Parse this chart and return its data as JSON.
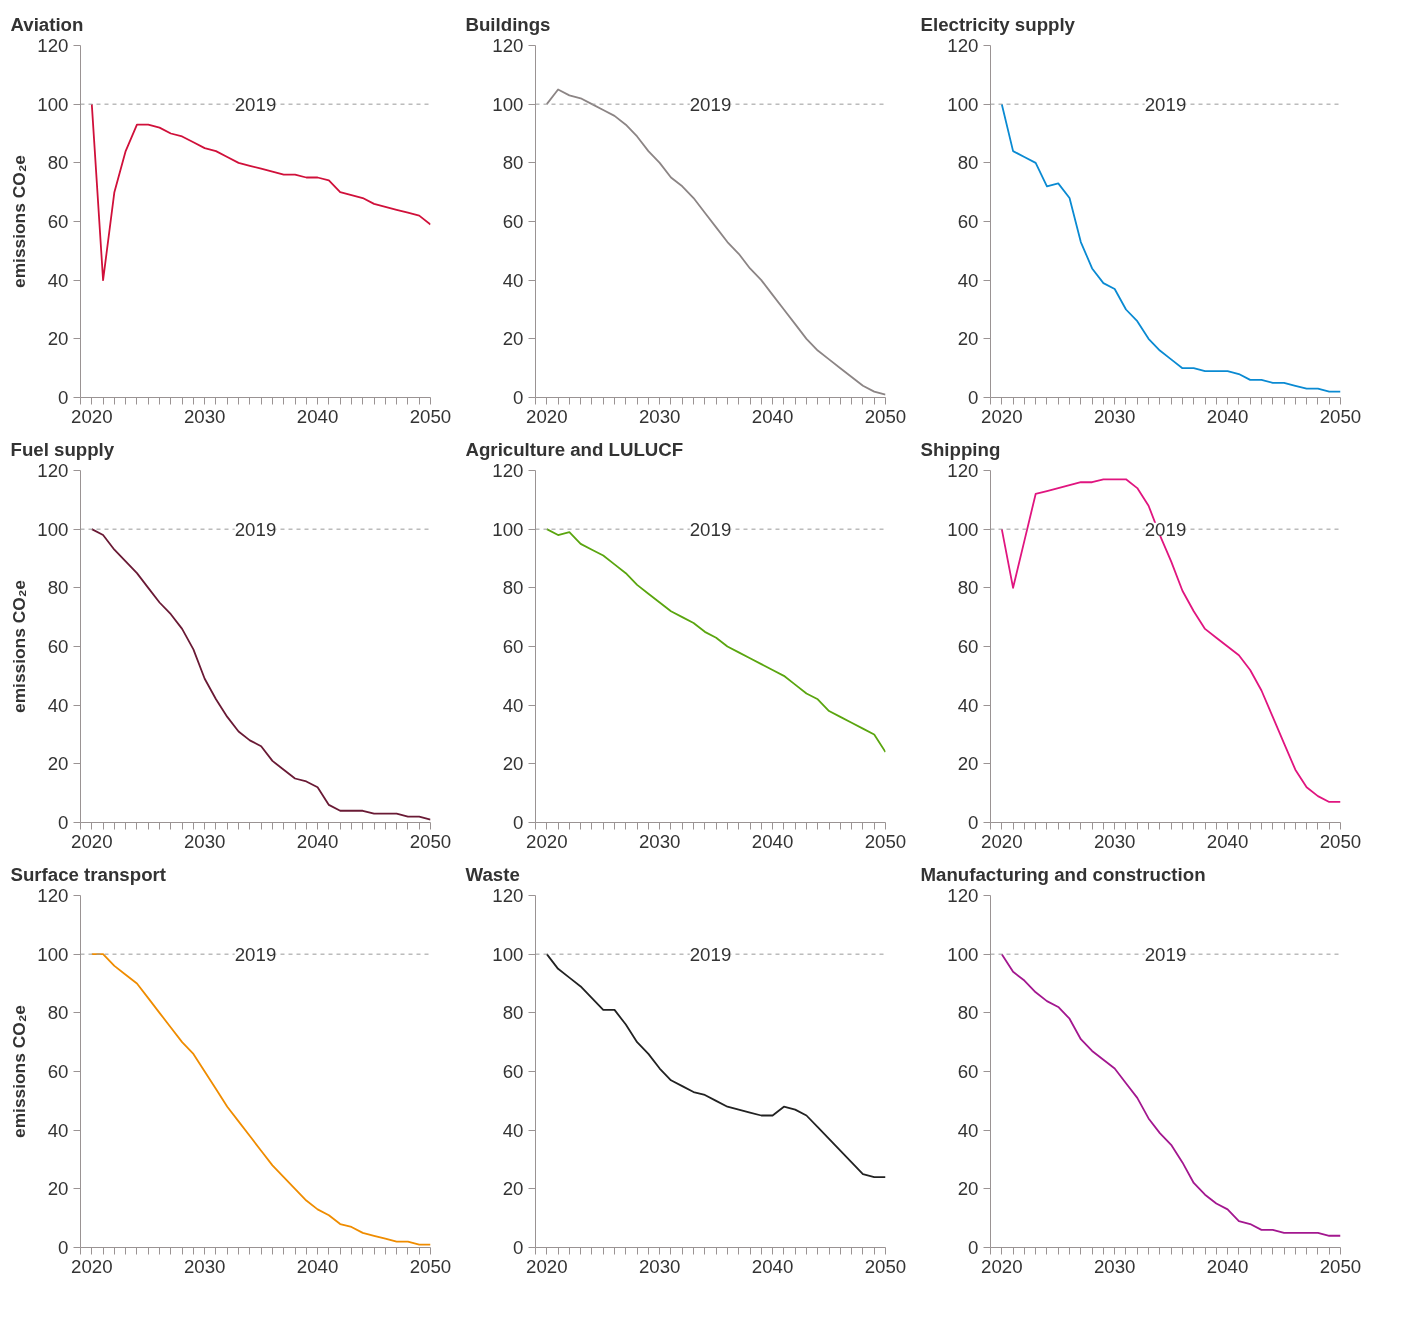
{
  "chart_data": [
    {
      "type": "line",
      "title": "Aviation",
      "ylabel": "emissions CO₂e",
      "annotations": [
        "2019"
      ],
      "x": [
        2020,
        2021,
        2022,
        2023,
        2024,
        2025,
        2026,
        2027,
        2028,
        2029,
        2030,
        2031,
        2032,
        2033,
        2034,
        2035,
        2036,
        2037,
        2038,
        2039,
        2040,
        2041,
        2042,
        2043,
        2044,
        2045,
        2046,
        2047,
        2048,
        2049,
        2050
      ],
      "series": [
        {
          "color": "#d0103a",
          "values": [
            100,
            40,
            70,
            84,
            93,
            93,
            92,
            90,
            89,
            87,
            85,
            84,
            82,
            80,
            79,
            78,
            77,
            76,
            76,
            75,
            75,
            74,
            70,
            69,
            68,
            66,
            65,
            64,
            63,
            62,
            59
          ]
        }
      ],
      "xlim": [
        2019,
        2050
      ],
      "xticks": [
        {
          "value": 2019,
          "label": null
        },
        2020,
        {
          "value": 2021,
          "label": null
        },
        {
          "value": 2022,
          "label": null
        },
        {
          "value": 2023,
          "label": null
        },
        {
          "value": 2024,
          "label": null
        },
        {
          "value": 2025,
          "label": null
        },
        {
          "value": 2026,
          "label": null
        },
        {
          "value": 2027,
          "label": null
        },
        {
          "value": 2028,
          "label": null
        },
        {
          "value": 2029,
          "label": null
        },
        2030,
        {
          "value": 2031,
          "label": null
        },
        {
          "value": 2032,
          "label": null
        },
        {
          "value": 2033,
          "label": null
        },
        {
          "value": 2034,
          "label": null
        },
        {
          "value": 2035,
          "label": null
        },
        {
          "value": 2036,
          "label": null
        },
        {
          "value": 2037,
          "label": null
        },
        {
          "value": 2038,
          "label": null
        },
        {
          "value": 2039,
          "label": null
        },
        2040,
        {
          "value": 2041,
          "label": null
        },
        {
          "value": 2042,
          "label": null
        },
        {
          "value": 2043,
          "label": null
        },
        {
          "value": 2044,
          "label": null
        },
        {
          "value": 2045,
          "label": null
        },
        {
          "value": 2046,
          "label": null
        },
        {
          "value": 2047,
          "label": null
        },
        {
          "value": 2048,
          "label": null
        },
        {
          "value": 2049,
          "label": null
        },
        2050
      ],
      "ylim": [
        0,
        120
      ],
      "yticks": [
        0,
        20,
        40,
        60,
        80,
        100,
        120
      ],
      "ref_lines": [
        {
          "axis": "y",
          "value": 100,
          "color": "#999999",
          "line_style": "dashed"
        }
      ]
    },
    {
      "type": "line",
      "title": "Buildings",
      "annotations": [
        "2019"
      ],
      "x": [
        2020,
        2021,
        2022,
        2023,
        2024,
        2025,
        2026,
        2027,
        2028,
        2029,
        2030,
        2031,
        2032,
        2033,
        2034,
        2035,
        2036,
        2037,
        2038,
        2039,
        2040,
        2041,
        2042,
        2043,
        2044,
        2045,
        2046,
        2047,
        2048,
        2049,
        2050
      ],
      "series": [
        {
          "color": "#8c8585",
          "values": [
            100,
            105,
            103,
            102,
            100,
            98,
            96,
            93,
            89,
            84,
            80,
            75,
            72,
            68,
            63,
            58,
            53,
            49,
            44,
            40,
            35,
            30,
            25,
            20,
            16,
            13,
            10,
            7,
            4,
            2,
            1
          ]
        }
      ],
      "xlim": [
        2019,
        2050
      ],
      "xticks": [
        {
          "value": 2019,
          "label": null
        },
        2020,
        {
          "value": 2021,
          "label": null
        },
        {
          "value": 2022,
          "label": null
        },
        {
          "value": 2023,
          "label": null
        },
        {
          "value": 2024,
          "label": null
        },
        {
          "value": 2025,
          "label": null
        },
        {
          "value": 2026,
          "label": null
        },
        {
          "value": 2027,
          "label": null
        },
        {
          "value": 2028,
          "label": null
        },
        {
          "value": 2029,
          "label": null
        },
        2030,
        {
          "value": 2031,
          "label": null
        },
        {
          "value": 2032,
          "label": null
        },
        {
          "value": 2033,
          "label": null
        },
        {
          "value": 2034,
          "label": null
        },
        {
          "value": 2035,
          "label": null
        },
        {
          "value": 2036,
          "label": null
        },
        {
          "value": 2037,
          "label": null
        },
        {
          "value": 2038,
          "label": null
        },
        {
          "value": 2039,
          "label": null
        },
        2040,
        {
          "value": 2041,
          "label": null
        },
        {
          "value": 2042,
          "label": null
        },
        {
          "value": 2043,
          "label": null
        },
        {
          "value": 2044,
          "label": null
        },
        {
          "value": 2045,
          "label": null
        },
        {
          "value": 2046,
          "label": null
        },
        {
          "value": 2047,
          "label": null
        },
        {
          "value": 2048,
          "label": null
        },
        {
          "value": 2049,
          "label": null
        },
        2050
      ],
      "ylim": [
        0,
        120
      ],
      "yticks": [
        0,
        20,
        40,
        60,
        80,
        100,
        120
      ],
      "ref_lines": [
        {
          "axis": "y",
          "value": 100,
          "color": "#999999",
          "line_style": "dashed"
        }
      ]
    },
    {
      "type": "line",
      "title": "Electricity supply",
      "annotations": [
        "2019"
      ],
      "x": [
        2020,
        2021,
        2022,
        2023,
        2024,
        2025,
        2026,
        2027,
        2028,
        2029,
        2030,
        2031,
        2032,
        2033,
        2034,
        2035,
        2036,
        2037,
        2038,
        2039,
        2040,
        2041,
        2042,
        2043,
        2044,
        2045,
        2046,
        2047,
        2048,
        2049,
        2050
      ],
      "series": [
        {
          "color": "#0a8ad2",
          "values": [
            100,
            84,
            82,
            80,
            72,
            73,
            68,
            53,
            44,
            39,
            37,
            30,
            26,
            20,
            16,
            13,
            10,
            10,
            9,
            9,
            9,
            8,
            6,
            6,
            5,
            5,
            4,
            3,
            3,
            2,
            2
          ]
        }
      ],
      "xlim": [
        2019,
        2050
      ],
      "xticks": [
        {
          "value": 2019,
          "label": null
        },
        2020,
        {
          "value": 2021,
          "label": null
        },
        {
          "value": 2022,
          "label": null
        },
        {
          "value": 2023,
          "label": null
        },
        {
          "value": 2024,
          "label": null
        },
        {
          "value": 2025,
          "label": null
        },
        {
          "value": 2026,
          "label": null
        },
        {
          "value": 2027,
          "label": null
        },
        {
          "value": 2028,
          "label": null
        },
        {
          "value": 2029,
          "label": null
        },
        2030,
        {
          "value": 2031,
          "label": null
        },
        {
          "value": 2032,
          "label": null
        },
        {
          "value": 2033,
          "label": null
        },
        {
          "value": 2034,
          "label": null
        },
        {
          "value": 2035,
          "label": null
        },
        {
          "value": 2036,
          "label": null
        },
        {
          "value": 2037,
          "label": null
        },
        {
          "value": 2038,
          "label": null
        },
        {
          "value": 2039,
          "label": null
        },
        2040,
        {
          "value": 2041,
          "label": null
        },
        {
          "value": 2042,
          "label": null
        },
        {
          "value": 2043,
          "label": null
        },
        {
          "value": 2044,
          "label": null
        },
        {
          "value": 2045,
          "label": null
        },
        {
          "value": 2046,
          "label": null
        },
        {
          "value": 2047,
          "label": null
        },
        {
          "value": 2048,
          "label": null
        },
        {
          "value": 2049,
          "label": null
        },
        2050
      ],
      "ylim": [
        0,
        120
      ],
      "yticks": [
        0,
        20,
        40,
        60,
        80,
        100,
        120
      ],
      "ref_lines": [
        {
          "axis": "y",
          "value": 100,
          "color": "#999999",
          "line_style": "dashed"
        }
      ]
    },
    {
      "type": "line",
      "title": "Fuel supply",
      "ylabel": "emissions CO₂e",
      "annotations": [
        "2019"
      ],
      "x": [
        2020,
        2021,
        2022,
        2023,
        2024,
        2025,
        2026,
        2027,
        2028,
        2029,
        2030,
        2031,
        2032,
        2033,
        2034,
        2035,
        2036,
        2037,
        2038,
        2039,
        2040,
        2041,
        2042,
        2043,
        2044,
        2045,
        2046,
        2047,
        2048,
        2049,
        2050
      ],
      "series": [
        {
          "color": "#6a1a35",
          "values": [
            100,
            98,
            93,
            89,
            85,
            80,
            75,
            71,
            66,
            59,
            49,
            42,
            36,
            31,
            28,
            26,
            21,
            18,
            15,
            14,
            12,
            6,
            4,
            4,
            4,
            3,
            3,
            3,
            2,
            2,
            1
          ]
        }
      ],
      "xlim": [
        2019,
        2050
      ],
      "xticks": [
        {
          "value": 2019,
          "label": null
        },
        2020,
        {
          "value": 2021,
          "label": null
        },
        {
          "value": 2022,
          "label": null
        },
        {
          "value": 2023,
          "label": null
        },
        {
          "value": 2024,
          "label": null
        },
        {
          "value": 2025,
          "label": null
        },
        {
          "value": 2026,
          "label": null
        },
        {
          "value": 2027,
          "label": null
        },
        {
          "value": 2028,
          "label": null
        },
        {
          "value": 2029,
          "label": null
        },
        2030,
        {
          "value": 2031,
          "label": null
        },
        {
          "value": 2032,
          "label": null
        },
        {
          "value": 2033,
          "label": null
        },
        {
          "value": 2034,
          "label": null
        },
        {
          "value": 2035,
          "label": null
        },
        {
          "value": 2036,
          "label": null
        },
        {
          "value": 2037,
          "label": null
        },
        {
          "value": 2038,
          "label": null
        },
        {
          "value": 2039,
          "label": null
        },
        2040,
        {
          "value": 2041,
          "label": null
        },
        {
          "value": 2042,
          "label": null
        },
        {
          "value": 2043,
          "label": null
        },
        {
          "value": 2044,
          "label": null
        },
        {
          "value": 2045,
          "label": null
        },
        {
          "value": 2046,
          "label": null
        },
        {
          "value": 2047,
          "label": null
        },
        {
          "value": 2048,
          "label": null
        },
        {
          "value": 2049,
          "label": null
        },
        2050
      ],
      "ylim": [
        0,
        120
      ],
      "yticks": [
        0,
        20,
        40,
        60,
        80,
        100,
        120
      ],
      "ref_lines": [
        {
          "axis": "y",
          "value": 100,
          "color": "#999999",
          "line_style": "dashed"
        }
      ]
    },
    {
      "type": "line",
      "title": "Agriculture and LULUCF",
      "annotations": [
        "2019"
      ],
      "x": [
        2020,
        2021,
        2022,
        2023,
        2024,
        2025,
        2026,
        2027,
        2028,
        2029,
        2030,
        2031,
        2032,
        2033,
        2034,
        2035,
        2036,
        2037,
        2038,
        2039,
        2040,
        2041,
        2042,
        2043,
        2044,
        2045,
        2046,
        2047,
        2048,
        2049,
        2050
      ],
      "series": [
        {
          "color": "#5aa50f",
          "values": [
            100,
            98,
            99,
            95,
            93,
            91,
            88,
            85,
            81,
            78,
            75,
            72,
            70,
            68,
            65,
            63,
            60,
            58,
            56,
            54,
            52,
            50,
            47,
            44,
            42,
            38,
            36,
            34,
            32,
            30,
            24
          ]
        }
      ],
      "xlim": [
        2019,
        2050
      ],
      "xticks": [
        {
          "value": 2019,
          "label": null
        },
        2020,
        {
          "value": 2021,
          "label": null
        },
        {
          "value": 2022,
          "label": null
        },
        {
          "value": 2023,
          "label": null
        },
        {
          "value": 2024,
          "label": null
        },
        {
          "value": 2025,
          "label": null
        },
        {
          "value": 2026,
          "label": null
        },
        {
          "value": 2027,
          "label": null
        },
        {
          "value": 2028,
          "label": null
        },
        {
          "value": 2029,
          "label": null
        },
        2030,
        {
          "value": 2031,
          "label": null
        },
        {
          "value": 2032,
          "label": null
        },
        {
          "value": 2033,
          "label": null
        },
        {
          "value": 2034,
          "label": null
        },
        {
          "value": 2035,
          "label": null
        },
        {
          "value": 2036,
          "label": null
        },
        {
          "value": 2037,
          "label": null
        },
        {
          "value": 2038,
          "label": null
        },
        {
          "value": 2039,
          "label": null
        },
        2040,
        {
          "value": 2041,
          "label": null
        },
        {
          "value": 2042,
          "label": null
        },
        {
          "value": 2043,
          "label": null
        },
        {
          "value": 2044,
          "label": null
        },
        {
          "value": 2045,
          "label": null
        },
        {
          "value": 2046,
          "label": null
        },
        {
          "value": 2047,
          "label": null
        },
        {
          "value": 2048,
          "label": null
        },
        {
          "value": 2049,
          "label": null
        },
        2050
      ],
      "ylim": [
        0,
        120
      ],
      "yticks": [
        0,
        20,
        40,
        60,
        80,
        100,
        120
      ],
      "ref_lines": [
        {
          "axis": "y",
          "value": 100,
          "color": "#999999",
          "line_style": "dashed"
        }
      ]
    },
    {
      "type": "line",
      "title": "Shipping",
      "annotations": [
        "2019"
      ],
      "x": [
        2020,
        2021,
        2022,
        2023,
        2024,
        2025,
        2026,
        2027,
        2028,
        2029,
        2030,
        2031,
        2032,
        2033,
        2034,
        2035,
        2036,
        2037,
        2038,
        2039,
        2040,
        2041,
        2042,
        2043,
        2044,
        2045,
        2046,
        2047,
        2048,
        2049,
        2050
      ],
      "series": [
        {
          "color": "#e0157f",
          "values": [
            100,
            80,
            96,
            112,
            113,
            114,
            115,
            116,
            116,
            117,
            117,
            117,
            114,
            108,
            98,
            89,
            79,
            72,
            66,
            63,
            60,
            57,
            52,
            45,
            36,
            27,
            18,
            12,
            9,
            7,
            7
          ]
        }
      ],
      "xlim": [
        2019,
        2050
      ],
      "xticks": [
        {
          "value": 2019,
          "label": null
        },
        2020,
        {
          "value": 2021,
          "label": null
        },
        {
          "value": 2022,
          "label": null
        },
        {
          "value": 2023,
          "label": null
        },
        {
          "value": 2024,
          "label": null
        },
        {
          "value": 2025,
          "label": null
        },
        {
          "value": 2026,
          "label": null
        },
        {
          "value": 2027,
          "label": null
        },
        {
          "value": 2028,
          "label": null
        },
        {
          "value": 2029,
          "label": null
        },
        2030,
        {
          "value": 2031,
          "label": null
        },
        {
          "value": 2032,
          "label": null
        },
        {
          "value": 2033,
          "label": null
        },
        {
          "value": 2034,
          "label": null
        },
        {
          "value": 2035,
          "label": null
        },
        {
          "value": 2036,
          "label": null
        },
        {
          "value": 2037,
          "label": null
        },
        {
          "value": 2038,
          "label": null
        },
        {
          "value": 2039,
          "label": null
        },
        2040,
        {
          "value": 2041,
          "label": null
        },
        {
          "value": 2042,
          "label": null
        },
        {
          "value": 2043,
          "label": null
        },
        {
          "value": 2044,
          "label": null
        },
        {
          "value": 2045,
          "label": null
        },
        {
          "value": 2046,
          "label": null
        },
        {
          "value": 2047,
          "label": null
        },
        {
          "value": 2048,
          "label": null
        },
        {
          "value": 2049,
          "label": null
        },
        2050
      ],
      "ylim": [
        0,
        120
      ],
      "yticks": [
        0,
        20,
        40,
        60,
        80,
        100,
        120
      ],
      "ref_lines": [
        {
          "axis": "y",
          "value": 100,
          "color": "#999999",
          "line_style": "dashed"
        }
      ]
    },
    {
      "type": "line",
      "title": "Surface transport",
      "ylabel": "emissions CO₂e",
      "annotations": [
        "2019"
      ],
      "x": [
        2020,
        2021,
        2022,
        2023,
        2024,
        2025,
        2026,
        2027,
        2028,
        2029,
        2030,
        2031,
        2032,
        2033,
        2034,
        2035,
        2036,
        2037,
        2038,
        2039,
        2040,
        2041,
        2042,
        2043,
        2044,
        2045,
        2046,
        2047,
        2048,
        2049,
        2050
      ],
      "series": [
        {
          "color": "#ef8c00",
          "values": [
            100,
            100,
            96,
            93,
            90,
            85,
            80,
            75,
            70,
            66,
            60,
            54,
            48,
            43,
            38,
            33,
            28,
            24,
            20,
            16,
            13,
            11,
            8,
            7,
            5,
            4,
            3,
            2,
            2,
            1,
            1
          ]
        }
      ],
      "xlim": [
        2019,
        2050
      ],
      "xticks": [
        {
          "value": 2019,
          "label": null
        },
        2020,
        {
          "value": 2021,
          "label": null
        },
        {
          "value": 2022,
          "label": null
        },
        {
          "value": 2023,
          "label": null
        },
        {
          "value": 2024,
          "label": null
        },
        {
          "value": 2025,
          "label": null
        },
        {
          "value": 2026,
          "label": null
        },
        {
          "value": 2027,
          "label": null
        },
        {
          "value": 2028,
          "label": null
        },
        {
          "value": 2029,
          "label": null
        },
        2030,
        {
          "value": 2031,
          "label": null
        },
        {
          "value": 2032,
          "label": null
        },
        {
          "value": 2033,
          "label": null
        },
        {
          "value": 2034,
          "label": null
        },
        {
          "value": 2035,
          "label": null
        },
        {
          "value": 2036,
          "label": null
        },
        {
          "value": 2037,
          "label": null
        },
        {
          "value": 2038,
          "label": null
        },
        {
          "value": 2039,
          "label": null
        },
        2040,
        {
          "value": 2041,
          "label": null
        },
        {
          "value": 2042,
          "label": null
        },
        {
          "value": 2043,
          "label": null
        },
        {
          "value": 2044,
          "label": null
        },
        {
          "value": 2045,
          "label": null
        },
        {
          "value": 2046,
          "label": null
        },
        {
          "value": 2047,
          "label": null
        },
        {
          "value": 2048,
          "label": null
        },
        {
          "value": 2049,
          "label": null
        },
        2050
      ],
      "ylim": [
        0,
        120
      ],
      "yticks": [
        0,
        20,
        40,
        60,
        80,
        100,
        120
      ],
      "ref_lines": [
        {
          "axis": "y",
          "value": 100,
          "color": "#999999",
          "line_style": "dashed"
        }
      ]
    },
    {
      "type": "line",
      "title": "Waste",
      "annotations": [
        "2019"
      ],
      "x": [
        2020,
        2021,
        2022,
        2023,
        2024,
        2025,
        2026,
        2027,
        2028,
        2029,
        2030,
        2031,
        2032,
        2033,
        2034,
        2035,
        2036,
        2037,
        2038,
        2039,
        2040,
        2041,
        2042,
        2043,
        2044,
        2045,
        2046,
        2047,
        2048,
        2049,
        2050
      ],
      "series": [
        {
          "color": "#222222",
          "values": [
            100,
            95,
            92,
            89,
            85,
            81,
            81,
            76,
            70,
            66,
            61,
            57,
            55,
            53,
            52,
            50,
            48,
            47,
            46,
            45,
            45,
            48,
            47,
            45,
            41,
            37,
            33,
            29,
            25,
            24,
            24
          ]
        }
      ],
      "xlim": [
        2019,
        2050
      ],
      "xticks": [
        {
          "value": 2019,
          "label": null
        },
        2020,
        {
          "value": 2021,
          "label": null
        },
        {
          "value": 2022,
          "label": null
        },
        {
          "value": 2023,
          "label": null
        },
        {
          "value": 2024,
          "label": null
        },
        {
          "value": 2025,
          "label": null
        },
        {
          "value": 2026,
          "label": null
        },
        {
          "value": 2027,
          "label": null
        },
        {
          "value": 2028,
          "label": null
        },
        {
          "value": 2029,
          "label": null
        },
        2030,
        {
          "value": 2031,
          "label": null
        },
        {
          "value": 2032,
          "label": null
        },
        {
          "value": 2033,
          "label": null
        },
        {
          "value": 2034,
          "label": null
        },
        {
          "value": 2035,
          "label": null
        },
        {
          "value": 2036,
          "label": null
        },
        {
          "value": 2037,
          "label": null
        },
        {
          "value": 2038,
          "label": null
        },
        {
          "value": 2039,
          "label": null
        },
        2040,
        {
          "value": 2041,
          "label": null
        },
        {
          "value": 2042,
          "label": null
        },
        {
          "value": 2043,
          "label": null
        },
        {
          "value": 2044,
          "label": null
        },
        {
          "value": 2045,
          "label": null
        },
        {
          "value": 2046,
          "label": null
        },
        {
          "value": 2047,
          "label": null
        },
        {
          "value": 2048,
          "label": null
        },
        {
          "value": 2049,
          "label": null
        },
        2050
      ],
      "ylim": [
        0,
        120
      ],
      "yticks": [
        0,
        20,
        40,
        60,
        80,
        100,
        120
      ],
      "ref_lines": [
        {
          "axis": "y",
          "value": 100,
          "color": "#999999",
          "line_style": "dashed"
        }
      ]
    },
    {
      "type": "line",
      "title": "Manufacturing and construction",
      "annotations": [
        "2019"
      ],
      "x": [
        2020,
        2021,
        2022,
        2023,
        2024,
        2025,
        2026,
        2027,
        2028,
        2029,
        2030,
        2031,
        2032,
        2033,
        2034,
        2035,
        2036,
        2037,
        2038,
        2039,
        2040,
        2041,
        2042,
        2043,
        2044,
        2045,
        2046,
        2047,
        2048,
        2049,
        2050
      ],
      "series": [
        {
          "color": "#a3178f",
          "values": [
            100,
            94,
            91,
            87,
            84,
            82,
            78,
            71,
            67,
            64,
            61,
            56,
            51,
            44,
            39,
            35,
            29,
            22,
            18,
            15,
            13,
            9,
            8,
            6,
            6,
            5,
            5,
            5,
            5,
            4,
            4
          ]
        }
      ],
      "xlim": [
        2019,
        2050
      ],
      "xticks": [
        {
          "value": 2019,
          "label": null
        },
        2020,
        {
          "value": 2021,
          "label": null
        },
        {
          "value": 2022,
          "label": null
        },
        {
          "value": 2023,
          "label": null
        },
        {
          "value": 2024,
          "label": null
        },
        {
          "value": 2025,
          "label": null
        },
        {
          "value": 2026,
          "label": null
        },
        {
          "value": 2027,
          "label": null
        },
        {
          "value": 2028,
          "label": null
        },
        {
          "value": 2029,
          "label": null
        },
        2030,
        {
          "value": 2031,
          "label": null
        },
        {
          "value": 2032,
          "label": null
        },
        {
          "value": 2033,
          "label": null
        },
        {
          "value": 2034,
          "label": null
        },
        {
          "value": 2035,
          "label": null
        },
        {
          "value": 2036,
          "label": null
        },
        {
          "value": 2037,
          "label": null
        },
        {
          "value": 2038,
          "label": null
        },
        {
          "value": 2039,
          "label": null
        },
        2040,
        {
          "value": 2041,
          "label": null
        },
        {
          "value": 2042,
          "label": null
        },
        {
          "value": 2043,
          "label": null
        },
        {
          "value": 2044,
          "label": null
        },
        {
          "value": 2045,
          "label": null
        },
        {
          "value": 2046,
          "label": null
        },
        {
          "value": 2047,
          "label": null
        },
        {
          "value": 2048,
          "label": null
        },
        {
          "value": 2049,
          "label": null
        },
        2050
      ],
      "ylim": [
        0,
        120
      ],
      "yticks": [
        0,
        20,
        40,
        60,
        80,
        100,
        120
      ],
      "ref_lines": [
        {
          "axis": "y",
          "value": 100,
          "color": "#999999",
          "line_style": "dashed"
        }
      ]
    }
  ]
}
